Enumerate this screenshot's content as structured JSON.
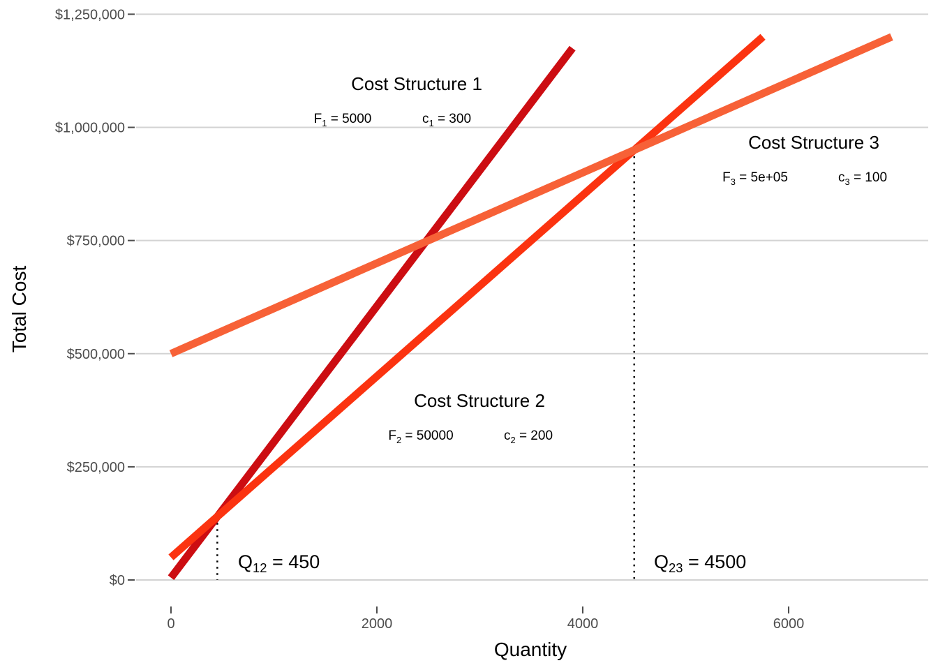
{
  "chart_data": {
    "type": "line",
    "xlabel": "Quantity",
    "ylabel": "Total Cost",
    "xlim": [
      0,
      7000
    ],
    "ylim": [
      0,
      1250000
    ],
    "x_ticks": [
      {
        "value": 0,
        "label": "0"
      },
      {
        "value": 2000,
        "label": "2000"
      },
      {
        "value": 4000,
        "label": "4000"
      },
      {
        "value": 6000,
        "label": "6000"
      }
    ],
    "y_ticks": [
      {
        "value": 0,
        "label": "$0"
      },
      {
        "value": 250000,
        "label": "$250,000"
      },
      {
        "value": 500000,
        "label": "$500,000"
      },
      {
        "value": 750000,
        "label": "$750,000"
      },
      {
        "value": 1000000,
        "label": "$1,000,000"
      },
      {
        "value": 1250000,
        "label": "$1,250,000"
      }
    ],
    "grid": "horizontal",
    "legend": "none",
    "series": [
      {
        "x": [
          0,
          3900
        ],
        "y": [
          5000,
          1175000
        ],
        "color": "#CC0D12"
      },
      {
        "x": [
          0,
          5750
        ],
        "y": [
          50000,
          1200000
        ],
        "color": "#FB3310"
      },
      {
        "x": [
          0,
          7000
        ],
        "y": [
          500000,
          1200000
        ],
        "color": "#F76137"
      }
    ],
    "annotations": [
      {
        "title": "Cost Structure 1",
        "f_sym": "F",
        "f_idx": "1",
        "f_val": "= 5000",
        "c_sym": "c",
        "c_idx": "1",
        "c_val": "= 300"
      },
      {
        "title": "Cost Structure 2",
        "f_sym": "F",
        "f_idx": "2",
        "f_val": "= 50000",
        "c_sym": "c",
        "c_idx": "2",
        "c_val": "= 200"
      },
      {
        "title": "Cost Structure 3",
        "f_sym": "F",
        "f_idx": "3",
        "f_val": "= 5e+05",
        "c_sym": "c",
        "c_idx": "3",
        "c_val": "= 100"
      }
    ],
    "crossovers": [
      {
        "x": 450,
        "y": 140000,
        "sym": "Q",
        "idx": "12",
        "val": "= 450"
      },
      {
        "x": 4500,
        "y": 950000,
        "sym": "Q",
        "idx": "23",
        "val": "= 4500"
      }
    ]
  }
}
